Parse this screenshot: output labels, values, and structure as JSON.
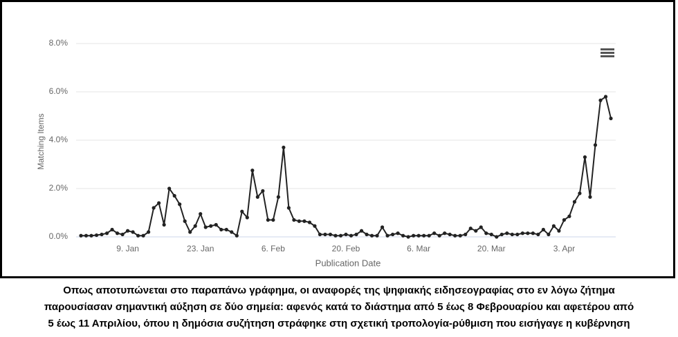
{
  "chart_data": {
    "type": "line",
    "x_label": "Publication Date",
    "y_label": "Matching Items",
    "color": "#222222",
    "grid": true,
    "categories": [
      null,
      null,
      null,
      null,
      null,
      null,
      null,
      null,
      null,
      "9. Jan",
      null,
      null,
      null,
      null,
      null,
      null,
      null,
      null,
      null,
      null,
      null,
      null,
      null,
      "23. Jan",
      null,
      null,
      null,
      null,
      null,
      null,
      null,
      null,
      null,
      null,
      null,
      null,
      null,
      "6. Feb",
      null,
      null,
      null,
      null,
      null,
      null,
      null,
      null,
      null,
      null,
      null,
      null,
      null,
      "20. Feb",
      null,
      null,
      null,
      null,
      null,
      null,
      null,
      null,
      null,
      null,
      null,
      null,
      null,
      "6. Mar",
      null,
      null,
      null,
      null,
      null,
      null,
      null,
      null,
      null,
      null,
      null,
      null,
      null,
      "20. Mar",
      null,
      null,
      null,
      null,
      null,
      null,
      null,
      null,
      null,
      null,
      null,
      null,
      null,
      "3. Apr",
      null,
      null,
      null,
      null,
      null,
      null,
      null,
      null,
      null
    ],
    "values": [
      0.05,
      0.05,
      0.05,
      0.07,
      0.1,
      0.15,
      0.3,
      0.15,
      0.1,
      0.25,
      0.2,
      0.05,
      0.05,
      0.2,
      1.2,
      1.4,
      0.5,
      2.0,
      1.7,
      1.35,
      0.65,
      0.2,
      0.45,
      0.95,
      0.4,
      0.45,
      0.5,
      0.3,
      0.3,
      0.2,
      0.05,
      1.05,
      0.8,
      2.75,
      1.65,
      1.9,
      0.7,
      0.7,
      1.65,
      3.7,
      1.2,
      0.7,
      0.65,
      0.65,
      0.6,
      0.45,
      0.1,
      0.1,
      0.1,
      0.05,
      0.05,
      0.1,
      0.05,
      0.1,
      0.25,
      0.1,
      0.05,
      0.05,
      0.4,
      0.05,
      0.1,
      0.15,
      0.05,
      0.0,
      0.05,
      0.05,
      0.05,
      0.05,
      0.15,
      0.05,
      0.15,
      0.1,
      0.05,
      0.05,
      0.1,
      0.35,
      0.25,
      0.4,
      0.15,
      0.1,
      0.0,
      0.1,
      0.15,
      0.1,
      0.1,
      0.15,
      0.15,
      0.15,
      0.1,
      0.3,
      0.1,
      0.45,
      0.25,
      0.7,
      0.85,
      1.45,
      1.8,
      3.3,
      1.65,
      3.8,
      5.65,
      5.8,
      4.9
    ],
    "ylim": [
      0,
      8
    ],
    "yticks": [
      {
        "value": 0,
        "label": "0.0%"
      },
      {
        "value": 2,
        "label": "2.0%"
      },
      {
        "value": 4,
        "label": "4.0%"
      },
      {
        "value": 6,
        "label": "6.0%"
      },
      {
        "value": 8,
        "label": "8.0%"
      }
    ]
  },
  "caption": [
    "Οπως αποτυπώνεται στο παραπάνω γράφημα, οι αναφορές της ψηφιακής ειδησεογραφίας στο εν λόγω ζήτημα",
    "παρουσίασαν σημαντική αύξηση σε δύο σημεία: αφενός κατά το διάστημα από 5 έως 8 Φεβρουαρίου και αφετέρου από",
    "5 έως 11 Απριλίου, όπου η δημόσια συζήτηση στράφηκε στη σχετική τροπολογία-ρύθμιση που εισήγαγε η κυβέρνηση"
  ]
}
